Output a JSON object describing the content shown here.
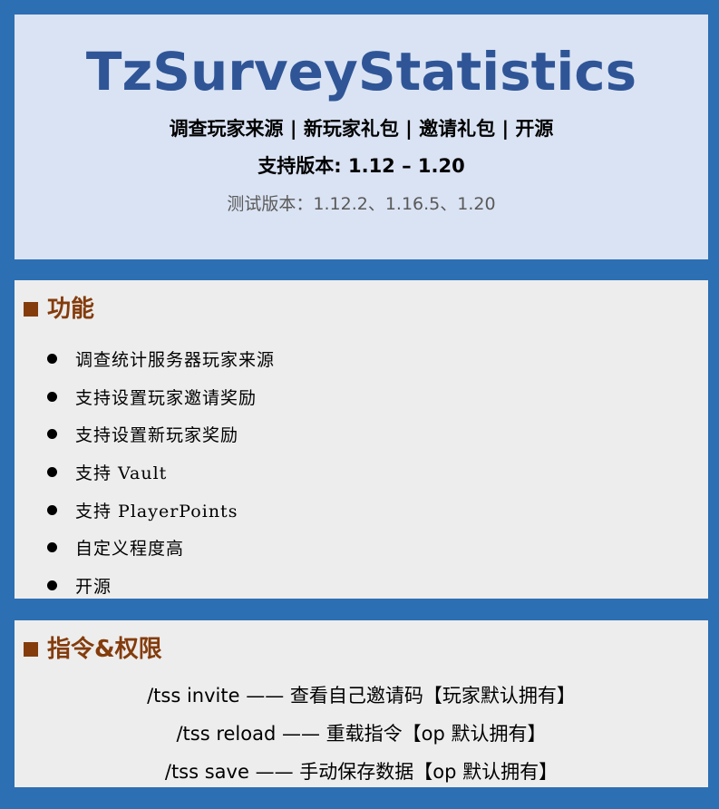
{
  "header": {
    "title": "TzSurveyStatistics",
    "tagline": "调查玩家来源 | 新玩家礼包 | 邀请礼包 | 开源",
    "supported_versions": "支持版本: 1.12 – 1.20",
    "tested_versions": "测试版本：1.12.2、1.16.5、1.20"
  },
  "features": {
    "heading": "功能",
    "items": [
      "调查统计服务器玩家来源",
      "支持设置玩家邀请奖励",
      "支持设置新玩家奖励",
      "支持 Vault",
      "支持 PlayerPoints",
      "自定义程度高",
      "开源"
    ]
  },
  "commands": {
    "heading": "指令&权限",
    "items": [
      "/tss invite —— 查看自己邀请码【玩家默认拥有】",
      "/tss reload —— 重载指令【op 默认拥有】",
      "/tss save —— 手动保存数据【op 默认拥有】"
    ]
  },
  "colors": {
    "frame": "#2d6fb3",
    "header_background": "#dae3f3",
    "title": "#2f5597",
    "section_background": "#ededed",
    "section_heading": "#843c0c"
  },
  "icons": {
    "section_marker": "square-icon",
    "list_marker": "bullet-icon"
  }
}
